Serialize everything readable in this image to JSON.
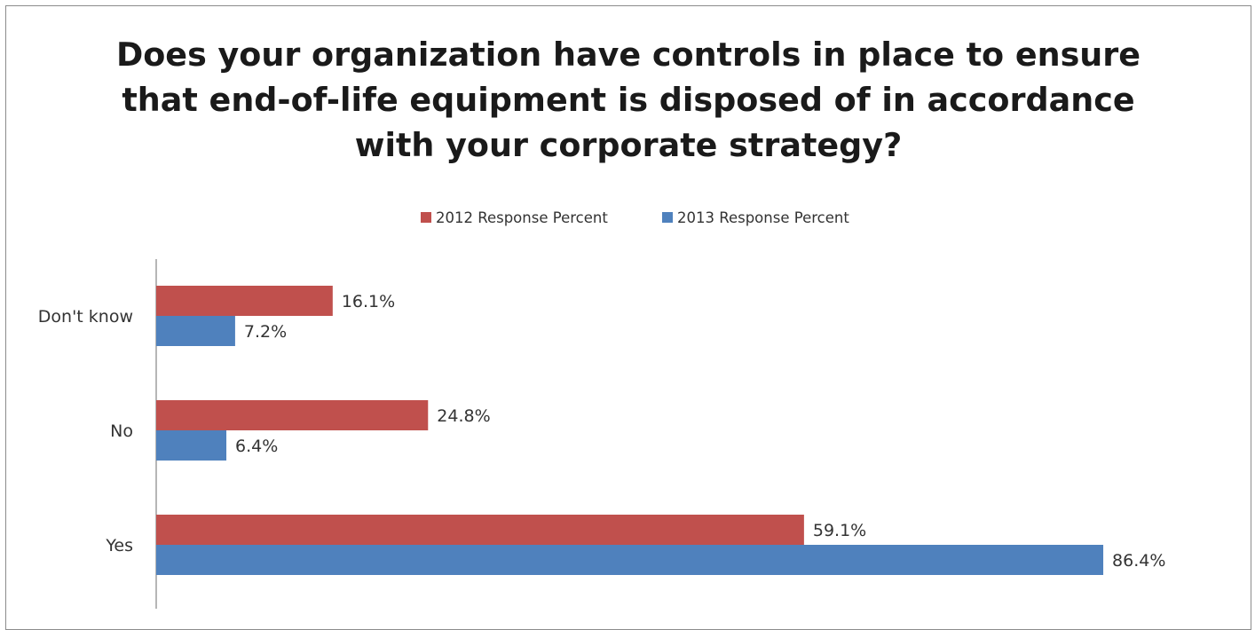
{
  "chart_data": {
    "type": "bar",
    "orientation": "horizontal",
    "title": "Does your organization have controls in place to ensure that end-of-life equipment is disposed of in accordance with your corporate strategy?",
    "title_lines": [
      "Does your organization have controls in place to ensure",
      "that end-of-life equipment is disposed of in accordance",
      "with your corporate strategy?"
    ],
    "categories": [
      "Don't know",
      "No",
      "Yes"
    ],
    "series": [
      {
        "name": "2012 Response Percent",
        "color": "#c0504d",
        "values": [
          16.1,
          24.8,
          59.1
        ],
        "labels": [
          "16.1%",
          "24.8%",
          "59.1%"
        ]
      },
      {
        "name": "2013 Response Percent",
        "color": "#4f81bd",
        "values": [
          7.2,
          6.4,
          86.4
        ],
        "labels": [
          "7.2%",
          "6.4%",
          "86.4%"
        ]
      }
    ],
    "xlim": [
      0,
      100
    ],
    "grid": false,
    "legend_position": "top",
    "data_labels": true,
    "xlabel": "",
    "ylabel": ""
  }
}
